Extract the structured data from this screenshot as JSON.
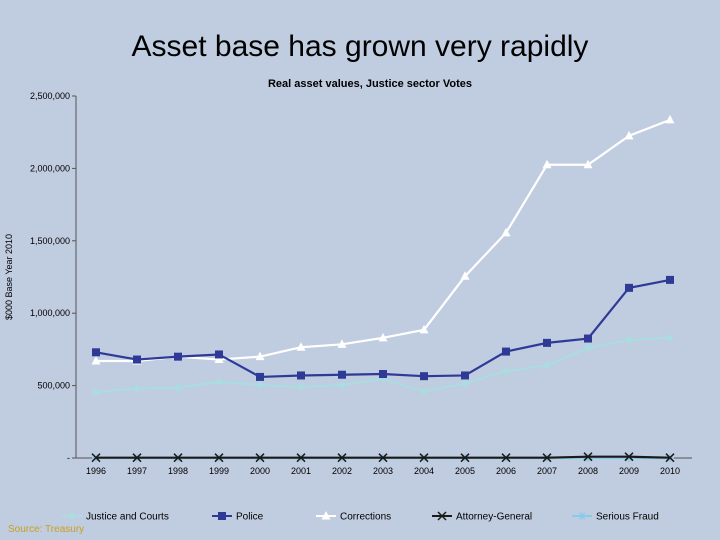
{
  "slide": {
    "title": "Asset base has grown very rapidly",
    "source": "Source: Treasury"
  },
  "chart_data": {
    "type": "line",
    "title": "Real asset values, Justice sector Votes",
    "xlabel": "",
    "ylabel": "$000 Base Year 2010",
    "ylim": [
      0,
      2500000
    ],
    "yticks": [
      0,
      500000,
      1000000,
      1500000,
      2000000,
      2500000
    ],
    "ytick_labels": [
      "-",
      "500,000",
      "1,000,000",
      "1,500,000",
      "2,000,000",
      "2,500,000"
    ],
    "grid": false,
    "legend_position": "bottom",
    "categories": [
      "1996",
      "1997",
      "1998",
      "1999",
      "2000",
      "2001",
      "2002",
      "2003",
      "2004",
      "2005",
      "2006",
      "2007",
      "2008",
      "2009",
      "2010"
    ],
    "series": [
      {
        "name": "Justice and Courts",
        "color": "#a9dde0",
        "marker": "diamond",
        "values": [
          455000,
          480000,
          485000,
          525000,
          505000,
          490000,
          505000,
          545000,
          460000,
          515000,
          600000,
          640000,
          760000,
          815000,
          830000
        ]
      },
      {
        "name": "Police",
        "color": "#2e3a96",
        "marker": "square",
        "values": [
          730000,
          680000,
          700000,
          715000,
          560000,
          570000,
          575000,
          580000,
          565000,
          570000,
          735000,
          795000,
          825000,
          1175000,
          1230000
        ]
      },
      {
        "name": "Corrections",
        "color": "#ffffff",
        "marker": "triangle",
        "values": [
          670000,
          670000,
          700000,
          680000,
          700000,
          765000,
          785000,
          830000,
          885000,
          1255000,
          1555000,
          2025000,
          2025000,
          2225000,
          2335000
        ]
      },
      {
        "name": "Attorney-General",
        "color": "#1a1a1a",
        "marker": "x",
        "values": [
          2000,
          2000,
          2000,
          2000,
          2000,
          2000,
          2000,
          2000,
          2000,
          2000,
          2000,
          2000,
          9000,
          9000,
          2000
        ]
      },
      {
        "name": "Serious Fraud",
        "color": "#87cbe8",
        "marker": "star",
        "values": [
          0,
          0,
          0,
          0,
          0,
          0,
          0,
          0,
          0,
          0,
          0,
          0,
          0,
          0,
          0
        ]
      }
    ]
  }
}
